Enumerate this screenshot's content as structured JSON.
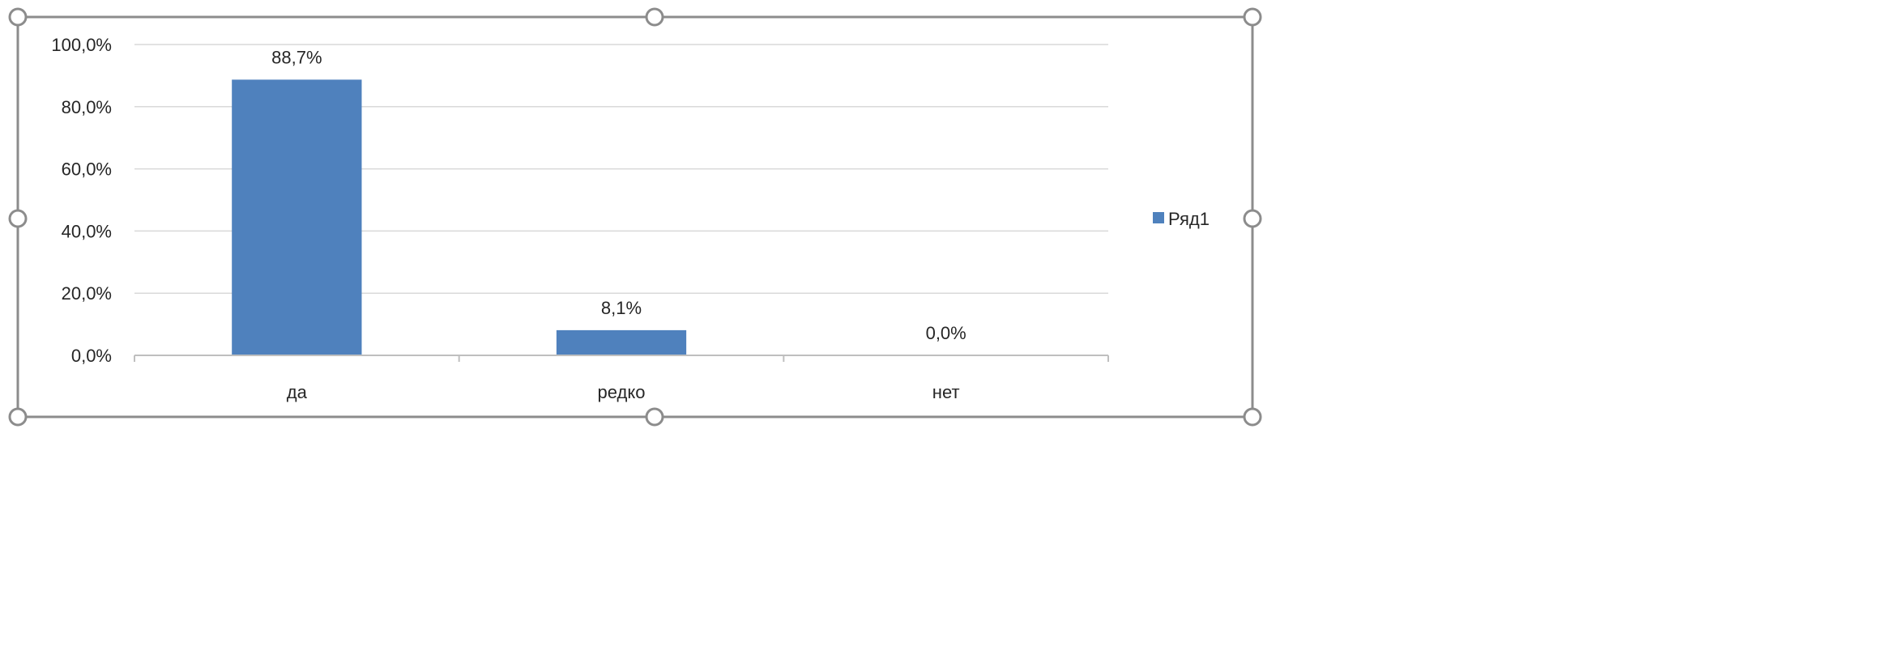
{
  "chart_data": {
    "type": "bar",
    "categories": [
      "да",
      "редко",
      "нет"
    ],
    "series": [
      {
        "name": "Ряд1",
        "values": [
          88.7,
          8.1,
          0.0
        ],
        "color": "#4F81BD"
      }
    ],
    "data_labels": [
      "88,7%",
      "8,1%",
      "0,0%"
    ],
    "yticks": [
      "0,0%",
      "20,0%",
      "40,0%",
      "60,0%",
      "80,0%",
      "100,0%"
    ],
    "ylim": [
      0,
      100
    ],
    "grid": true,
    "legend_position": "right",
    "title": "",
    "xlabel": "",
    "ylabel": ""
  },
  "colors": {
    "bar": "#4F81BD",
    "gridline": "#D9D9D9",
    "axis": "#BFBFBF",
    "selection_frame": "#8C8C8C",
    "text": "#262626"
  }
}
